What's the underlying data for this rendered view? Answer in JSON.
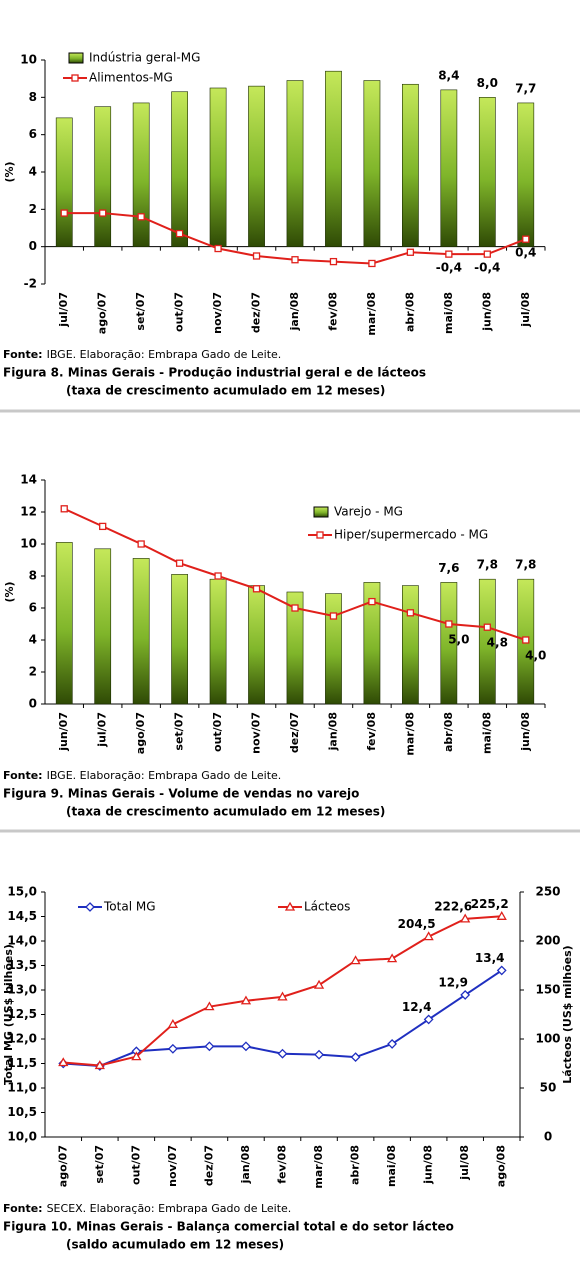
{
  "chart_data": [
    {
      "type": "combo",
      "y_label": "(%)",
      "categories": [
        "jul/07",
        "ago/07",
        "set/07",
        "out/07",
        "nov/07",
        "dez/07",
        "jan/08",
        "fev/08",
        "mar/08",
        "abr/08",
        "mai/08",
        "jun/08",
        "jul/08"
      ],
      "series": [
        {
          "name": "Indústria geral-MG",
          "kind": "bar",
          "color": "#8cc63f",
          "label_color": "#000000",
          "values": [
            6.9,
            7.5,
            7.7,
            8.3,
            8.5,
            8.6,
            8.9,
            9.4,
            8.9,
            8.7,
            8.4,
            8.0,
            7.7
          ],
          "value_labels": [
            null,
            null,
            null,
            null,
            null,
            null,
            null,
            null,
            null,
            null,
            "8,4",
            "8,0",
            "7,7"
          ]
        },
        {
          "name": "Alimentos-MG",
          "kind": "line",
          "marker": "square",
          "color": "#e0201b",
          "label_color": "#000000",
          "values": [
            1.8,
            1.8,
            1.6,
            0.7,
            -0.1,
            -0.5,
            -0.7,
            -0.8,
            -0.9,
            -0.3,
            -0.4,
            -0.4,
            0.4
          ],
          "value_labels": [
            null,
            null,
            null,
            null,
            null,
            null,
            null,
            null,
            null,
            null,
            "-0,4",
            "-0,4",
            "0,4"
          ]
        }
      ],
      "ylim": [
        -2,
        10
      ],
      "yticks": [
        -2,
        0,
        2,
        4,
        6,
        8,
        10
      ],
      "legend": "top-left",
      "source_label": "Fonte:",
      "source": "IBGE. Elaboração: Embrapa Gado de Leite.",
      "caption": "Figura 8. Minas Gerais - Produção industrial geral e de lácteos",
      "caption_sub": "(taxa de crescimento acumulado em 12 meses)"
    },
    {
      "type": "combo",
      "y_label": "(%)",
      "categories": [
        "jun/07",
        "jul/07",
        "ago/07",
        "set/07",
        "out/07",
        "nov/07",
        "dez/07",
        "jan/08",
        "fev/08",
        "mar/08",
        "abr/08",
        "mai/08",
        "jun/08"
      ],
      "series": [
        {
          "name": "Varejo - MG",
          "kind": "bar",
          "color": "#8cc63f",
          "label_color": "#3a9a4a",
          "values": [
            10.1,
            9.7,
            9.1,
            8.1,
            7.8,
            7.4,
            7.0,
            6.9,
            7.6,
            7.4,
            7.6,
            7.8,
            7.8
          ],
          "value_labels": [
            null,
            null,
            null,
            null,
            null,
            null,
            null,
            null,
            null,
            null,
            "7,6",
            "7,8",
            "7,8"
          ]
        },
        {
          "name": "Hiper/supermercado - MG",
          "kind": "line",
          "marker": "square",
          "color": "#e0201b",
          "label_color": "#e0201b",
          "values": [
            12.2,
            11.1,
            10.0,
            8.8,
            8.0,
            7.2,
            6.0,
            5.5,
            6.4,
            5.7,
            5.0,
            4.8,
            4.0
          ],
          "value_labels": [
            null,
            null,
            null,
            null,
            null,
            null,
            null,
            null,
            null,
            null,
            "5,0",
            "4,8",
            "4,0"
          ]
        }
      ],
      "ylim": [
        0,
        14
      ],
      "yticks": [
        0,
        2,
        4,
        6,
        8,
        10,
        12,
        14
      ],
      "legend": "top-right",
      "source_label": "Fonte:",
      "source": "IBGE. Elaboração: Embrapa Gado de Leite.",
      "caption": "Figura 9. Minas Gerais - Volume de vendas no varejo",
      "caption_sub": "(taxa de crescimento acumulado em 12 meses)"
    },
    {
      "type": "line",
      "y_label": "Total MG (US$ bilhões)",
      "y2_label": "Lácteos (US$ milhões)",
      "categories": [
        "ago/07",
        "set/07",
        "out/07",
        "nov/07",
        "dez/07",
        "jan/08",
        "fev/08",
        "mar/08",
        "abr/08",
        "mai/08",
        "jun/08",
        "jul/08",
        "ago/08"
      ],
      "series": [
        {
          "name": "Total MG",
          "kind": "line",
          "marker": "diamond",
          "color": "#1f2fc0",
          "label_color": "#1f2fc0",
          "values": [
            11.5,
            11.45,
            11.75,
            11.8,
            11.85,
            11.85,
            11.7,
            11.68,
            11.63,
            11.9,
            12.4,
            12.9,
            13.4
          ],
          "value_labels": [
            null,
            null,
            null,
            null,
            null,
            null,
            null,
            null,
            null,
            null,
            "12,4",
            "12,9",
            "13,4"
          ]
        },
        {
          "name": "Lácteos",
          "kind": "line",
          "marker": "triangle",
          "color": "#e0201b",
          "label_color": "#e0201b",
          "axis": "y2",
          "values": [
            76,
            73,
            82,
            115,
            133,
            139,
            143,
            155,
            180,
            182,
            204.5,
            222.6,
            225.2
          ],
          "value_labels": [
            null,
            null,
            null,
            null,
            null,
            null,
            null,
            null,
            null,
            null,
            "204,5",
            "222,6",
            "225,2"
          ]
        }
      ],
      "ylim": [
        10,
        15
      ],
      "yticks": [
        {
          "value": 10,
          "label": "10,0"
        },
        {
          "value": 10.5,
          "label": "10,5"
        },
        {
          "value": 11,
          "label": "11,0"
        },
        {
          "value": 11.5,
          "label": "11,5"
        },
        {
          "value": 12,
          "label": "12,0"
        },
        {
          "value": 12.5,
          "label": "12,5"
        },
        {
          "value": 13,
          "label": "13,0"
        },
        {
          "value": 13.5,
          "label": "13,5"
        },
        {
          "value": 14,
          "label": "14,0"
        },
        {
          "value": 14.5,
          "label": "14,5"
        },
        {
          "value": 15,
          "label": "15,0"
        }
      ],
      "y2lim": [
        0,
        250
      ],
      "y2ticks": [
        0,
        50,
        100,
        150,
        200,
        250
      ],
      "legend": "top",
      "source_label": "Fonte:",
      "source": "SECEX. Elaboração: Embrapa Gado de Leite.",
      "caption": "Figura 10. Minas Gerais - Balança comercial total e do setor lácteo",
      "caption_sub": "(saldo acumulado em 12 meses)"
    }
  ]
}
